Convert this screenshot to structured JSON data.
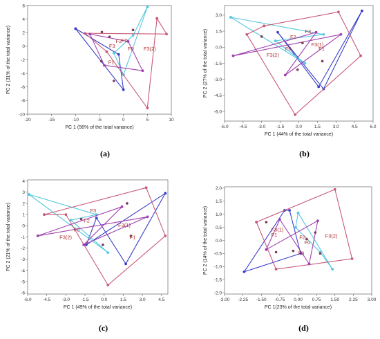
{
  "chart_data": [
    {
      "type": "scatter",
      "caption": "(a)",
      "xlabel": "PC 1 (56% of the total variance)",
      "ylabel": "PC 2 (31% of the total variance)",
      "xlim": [
        -20,
        10
      ],
      "ylim": [
        -10,
        6
      ],
      "xticks": [
        -20,
        -15,
        -10,
        -5,
        0,
        5,
        10
      ],
      "yticks": [
        -10,
        -8,
        -6,
        -4,
        -2,
        0,
        2,
        4,
        6
      ],
      "colors": [
        "#3a3ec8",
        "#55c8e0",
        "#c85a78",
        "#a040b0"
      ],
      "polygons": [
        [
          [
            -10,
            2.6
          ],
          [
            0,
            -6.4
          ],
          [
            -1,
            -1.2
          ],
          [
            -10,
            2.6
          ]
        ],
        [
          [
            5,
            5.8
          ],
          [
            0,
            -4.2
          ],
          [
            -2,
            -1
          ],
          [
            2,
            1.6
          ],
          [
            5,
            5.8
          ]
        ],
        [
          [
            7,
            4.1
          ],
          [
            5,
            -9.1
          ],
          [
            -3.5,
            -0.8
          ],
          [
            -8,
            1.9
          ],
          [
            9,
            1.8
          ],
          [
            7,
            4.1
          ]
        ],
        [
          [
            -7,
            1.8
          ],
          [
            -4,
            -2.8
          ],
          [
            4,
            -3.6
          ],
          [
            1,
            0.7
          ],
          [
            -7,
            1.8
          ]
        ]
      ],
      "extra_points": [
        [
          -2,
          -5.1
        ],
        [
          -4.6,
          -2.2
        ],
        [
          -4.5,
          2.1
        ],
        [
          -2.9,
          1.4
        ],
        [
          2,
          2.4
        ]
      ],
      "labels": [
        {
          "text": "F2",
          "x": -1.6,
          "y": 0.5
        },
        {
          "text": "F0",
          "x": -0.4,
          "y": 0.6
        },
        {
          "text": "F3",
          "x": -3,
          "y": -0.2
        },
        {
          "text": "F0",
          "x": 0.9,
          "y": -0.6
        },
        {
          "text": "F3(2)",
          "x": 4.2,
          "y": -0.6
        },
        {
          "text": "F1",
          "x": -3.2,
          "y": -2.6
        }
      ]
    },
    {
      "type": "scatter",
      "caption": "(b)",
      "xlabel": "PC 1 (44% of the total variance)",
      "ylabel": "PC 2 (27% of the total variance)",
      "xlim": [
        -6,
        6
      ],
      "ylim": [
        -6.9,
        3.9
      ],
      "xticks": [
        -6,
        -4.5,
        -3,
        -1.5,
        0,
        1.5,
        3,
        4.5,
        6
      ],
      "xtick_labels": [
        "-6.0",
        "-4.5",
        "-3.0",
        "-1.5",
        "0.0",
        "1.5",
        "3.0",
        "4.5",
        "6.0"
      ],
      "yticks": [
        -6,
        -4.5,
        -3,
        -1.5,
        0,
        1.5,
        3
      ],
      "ytick_labels": [
        "-6.0",
        "-4.5",
        "-3.0",
        "-1.5",
        "0.0",
        "1.5",
        "3.0"
      ],
      "colors": [
        "#3a3ec8",
        "#55c8e0",
        "#c85a78",
        "#a040b0"
      ],
      "polygons": [
        [
          [
            5.1,
            3.4
          ],
          [
            1.6,
            -3.7
          ],
          [
            -1.7,
            1.4
          ],
          [
            2.0,
            -3.9
          ],
          [
            5.1,
            3.4
          ]
        ],
        [
          [
            -5.5,
            2.8
          ],
          [
            0.5,
            -1.5
          ],
          [
            -1.9,
            0.6
          ],
          [
            2.0,
            1.2
          ],
          [
            -5.5,
            2.8
          ]
        ],
        [
          [
            -2.8,
            2.0
          ],
          [
            3.2,
            3.3
          ],
          [
            5.0,
            -0.8
          ],
          [
            -0.3,
            -6.3
          ],
          [
            -4.2,
            1.2
          ],
          [
            -2.8,
            2.0
          ]
        ],
        [
          [
            -5.3,
            -0.8
          ],
          [
            3.4,
            1.2
          ],
          [
            -1.1,
            -2.6
          ],
          [
            1.4,
            1.4
          ],
          [
            -5.3,
            -0.8
          ]
        ]
      ],
      "extra_points": [
        [
          0.3,
          0.4
        ],
        [
          -3.0,
          1.0
        ],
        [
          1.9,
          -1.3
        ],
        [
          -0.1,
          -2.1
        ]
      ],
      "labels": [
        {
          "text": "F3",
          "x": 0.5,
          "y": 1.3
        },
        {
          "text": "F2",
          "x": -0.7,
          "y": 0.8
        },
        {
          "text": "F3(1)",
          "x": 1.0,
          "y": 0.1
        },
        {
          "text": "F0",
          "x": -1.1,
          "y": -0.3
        },
        {
          "text": "F3(2)",
          "x": -2.6,
          "y": -0.9
        },
        {
          "text": "F1",
          "x": 1.6,
          "y": -0.3
        }
      ]
    },
    {
      "type": "scatter",
      "caption": "(c)",
      "xlabel": "PC 1 (49% of the total variance)",
      "ylabel": "PC 2 (21% of the total variance)",
      "xlim": [
        -6,
        5
      ],
      "ylim": [
        -6.1,
        4.1
      ],
      "xticks": [
        -6,
        -4.5,
        -3,
        -1.5,
        0,
        1.5,
        3,
        4.5
      ],
      "xtick_labels": [
        "-6.0",
        "-4.5",
        "-3.0",
        "-1.5",
        "0.0",
        "1.5",
        "3.0",
        "4.5"
      ],
      "yticks": [
        -6,
        -5,
        -4,
        -3,
        -2,
        -1,
        0,
        1,
        2,
        3,
        4
      ],
      "colors": [
        "#3a3ec8",
        "#55c8e0",
        "#c85a78",
        "#a040b0"
      ],
      "polygons": [
        [
          [
            4.8,
            2.9
          ],
          [
            1.7,
            -3.4
          ],
          [
            -0.6,
            0.7
          ],
          [
            -1.4,
            -1.7
          ],
          [
            4.8,
            2.9
          ]
        ],
        [
          [
            -5.9,
            2.8
          ],
          [
            0.3,
            -2.4
          ],
          [
            -2.6,
            0.5
          ],
          [
            -0.6,
            1.0
          ],
          [
            -5.9,
            2.8
          ]
        ],
        [
          [
            -4.7,
            1.0
          ],
          [
            3.3,
            3.4
          ],
          [
            4.8,
            -0.9
          ],
          [
            0.3,
            -5.3
          ],
          [
            -3.0,
            1.0
          ],
          [
            -4.7,
            1.0
          ]
        ],
        [
          [
            -5.2,
            -0.9
          ],
          [
            3.4,
            0.8
          ],
          [
            -1.6,
            -1.7
          ],
          [
            1.4,
            1.7
          ],
          [
            -5.2,
            -0.9
          ]
        ]
      ],
      "extra_points": [
        [
          1.8,
          2.0
        ],
        [
          -1.8,
          0.6
        ],
        [
          2.1,
          -0.9
        ],
        [
          -0.1,
          -1.7
        ]
      ],
      "labels": [
        {
          "text": "F3",
          "x": -1.1,
          "y": 1.2
        },
        {
          "text": "F2",
          "x": -1.6,
          "y": 0.3
        },
        {
          "text": "F3(1)",
          "x": 1.1,
          "y": -0.1
        },
        {
          "text": "F0",
          "x": -2.4,
          "y": -0.5
        },
        {
          "text": "F3(2)",
          "x": -3.5,
          "y": -1.2
        },
        {
          "text": "F1",
          "x": 2.0,
          "y": -1.2
        }
      ]
    },
    {
      "type": "scatter",
      "caption": "(d)",
      "xlabel": "PC 1(23% of the total variance)",
      "ylabel": "PC 2 (14% of the total variance)",
      "xlim": [
        -3,
        3
      ],
      "ylim": [
        -2.05,
        2.05
      ],
      "xticks": [
        -3,
        -2.25,
        -1.5,
        -0.75,
        0,
        0.75,
        1.5,
        2.25,
        3
      ],
      "xtick_labels": [
        "-3.00",
        "-2.25",
        "-1.50",
        "-0.75",
        "0.00",
        "0.75",
        "1.50",
        "2.25",
        "3.00"
      ],
      "yticks": [
        -2,
        -1.5,
        -1,
        -0.5,
        0,
        0.5,
        1,
        1.5,
        2
      ],
      "ytick_labels": [
        "-2.0",
        "-1.5",
        "-1.0",
        "-0.5",
        "0.0",
        "0.5",
        "1.0",
        "1.5",
        "2.0"
      ],
      "colors": [
        "#3a3ec8",
        "#55c8e0",
        "#c85a78",
        "#a040b0"
      ],
      "polygons": [
        [
          [
            -0.55,
            1.15
          ],
          [
            -2.2,
            -1.2
          ],
          [
            0.1,
            -0.5
          ],
          [
            -0.35,
            1.15
          ],
          [
            -0.55,
            1.15
          ]
        ],
        [
          [
            0.0,
            1.05
          ],
          [
            1.4,
            -1.1
          ],
          [
            0.9,
            -0.45
          ],
          [
            -0.1,
            0.5
          ],
          [
            0.0,
            1.05
          ]
        ],
        [
          [
            -1.7,
            0.7
          ],
          [
            1.5,
            1.95
          ],
          [
            2.2,
            -0.7
          ],
          [
            -0.9,
            -1.1
          ],
          [
            -1.7,
            0.7
          ]
        ],
        [
          [
            -1.3,
            -0.35
          ],
          [
            0.8,
            0.75
          ],
          [
            0.45,
            -0.9
          ],
          [
            -0.75,
            0.8
          ],
          [
            -1.3,
            -0.35
          ]
        ]
      ],
      "extra_points": [
        [
          0.7,
          0.3
        ],
        [
          -0.2,
          -0.4
        ],
        [
          0.9,
          -0.5
        ],
        [
          -1.3,
          0.7
        ],
        [
          0.35,
          0.05
        ],
        [
          -0.9,
          -0.45
        ]
      ],
      "labels": [
        {
          "text": "F3(1)",
          "x": -1.1,
          "y": 0.35
        },
        {
          "text": "F1",
          "x": -1.1,
          "y": 0.15
        },
        {
          "text": "F2",
          "x": 0.05,
          "y": 0.05
        },
        {
          "text": "F0",
          "x": 0.25,
          "y": -0.15
        },
        {
          "text": "F3(2)",
          "x": 1.1,
          "y": 0.1
        },
        {
          "text": "F3",
          "x": 0.0,
          "y": -0.55
        }
      ]
    }
  ]
}
